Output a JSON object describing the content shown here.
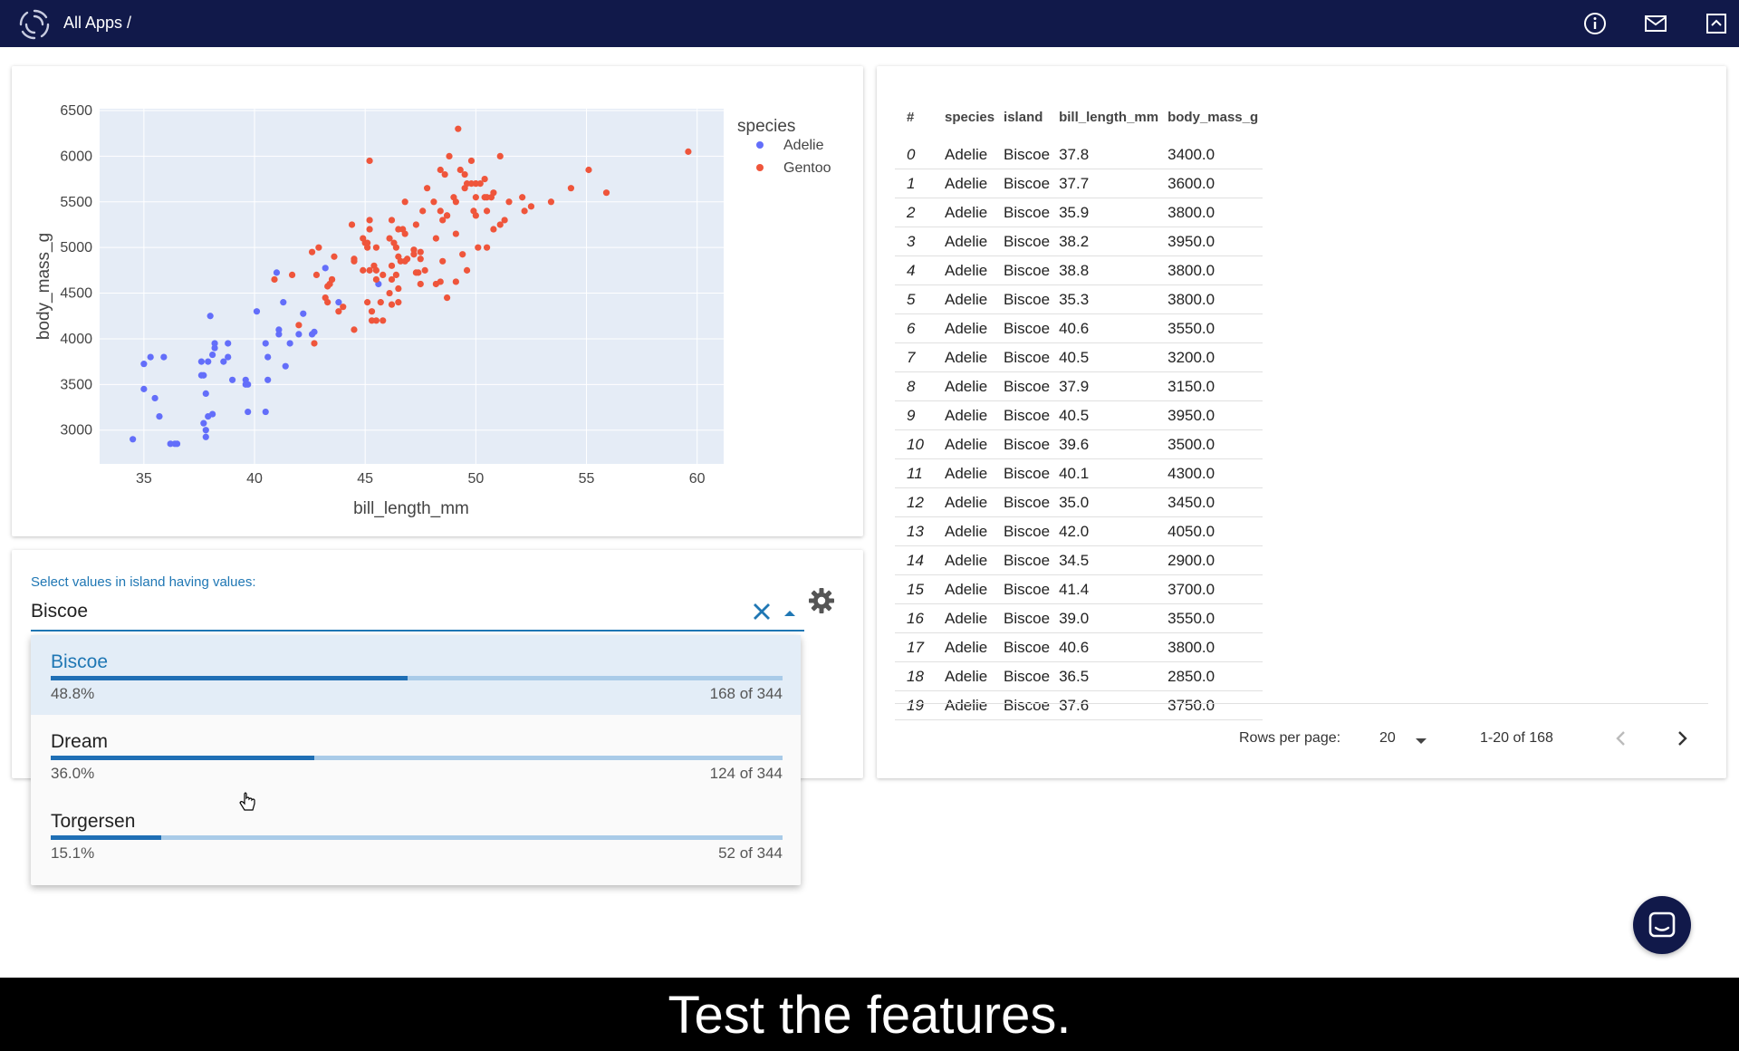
{
  "header": {
    "breadcrumb": "All Apps /",
    "icons": [
      "info-icon",
      "mail-icon",
      "collapse-icon"
    ]
  },
  "plot": {
    "legend_title": "species",
    "colors": {
      "Adelie": "#636efa",
      "Gentoo": "#ef553b"
    }
  },
  "chart_data": {
    "type": "scatter",
    "xlabel": "bill_length_mm",
    "ylabel": "body_mass_g",
    "xlim": [
      33,
      61.2
    ],
    "ylim": [
      2630,
      6520
    ],
    "x_ticks": [
      35,
      40,
      45,
      50,
      55,
      60
    ],
    "y_ticks": [
      3000,
      3500,
      4000,
      4500,
      5000,
      5500,
      6000,
      6500
    ],
    "grid": true,
    "legend_position": "top-right",
    "series": [
      {
        "name": "Adelie",
        "points": [
          [
            37.8,
            3400
          ],
          [
            37.7,
            3600
          ],
          [
            35.9,
            3800
          ],
          [
            38.2,
            3950
          ],
          [
            38.8,
            3800
          ],
          [
            35.3,
            3800
          ],
          [
            40.6,
            3550
          ],
          [
            40.5,
            3200
          ],
          [
            37.9,
            3150
          ],
          [
            40.5,
            3950
          ],
          [
            39.6,
            3500
          ],
          [
            40.1,
            4300
          ],
          [
            35.0,
            3450
          ],
          [
            42.0,
            4050
          ],
          [
            34.5,
            2900
          ],
          [
            41.4,
            3700
          ],
          [
            39.0,
            3550
          ],
          [
            40.6,
            3800
          ],
          [
            36.5,
            2850
          ],
          [
            37.6,
            3750
          ],
          [
            35.7,
            3150
          ],
          [
            41.3,
            4400
          ],
          [
            37.6,
            3600
          ],
          [
            41.1,
            4050
          ],
          [
            36.4,
            2850
          ],
          [
            41.6,
            3950
          ],
          [
            35.5,
            3350
          ],
          [
            41.1,
            4100
          ],
          [
            35.0,
            3725
          ],
          [
            41.0,
            4725
          ],
          [
            37.7,
            3075
          ],
          [
            37.8,
            2925
          ],
          [
            37.9,
            3750
          ],
          [
            39.7,
            3200
          ],
          [
            38.6,
            3750
          ],
          [
            38.2,
            3900
          ],
          [
            38.1,
            3825
          ],
          [
            43.2,
            4775
          ],
          [
            38.1,
            3175
          ],
          [
            45.6,
            4600
          ],
          [
            39.7,
            3500
          ],
          [
            42.2,
            4275
          ],
          [
            39.6,
            3550
          ],
          [
            42.7,
            4075
          ],
          [
            38.0,
            4250
          ],
          [
            38.8,
            3950
          ],
          [
            43.8,
            4400
          ],
          [
            42.6,
            4050
          ],
          [
            37.8,
            3000
          ],
          [
            36.2,
            2850
          ]
        ]
      },
      {
        "name": "Gentoo",
        "points": [
          [
            46.1,
            4500
          ],
          [
            50.0,
            5700
          ],
          [
            48.7,
            4450
          ],
          [
            50.0,
            5700
          ],
          [
            47.6,
            5400
          ],
          [
            46.5,
            4550
          ],
          [
            45.4,
            4800
          ],
          [
            46.7,
            5200
          ],
          [
            43.3,
            4400
          ],
          [
            46.8,
            5150
          ],
          [
            40.9,
            4650
          ],
          [
            49.0,
            5550
          ],
          [
            45.5,
            4650
          ],
          [
            48.4,
            5850
          ],
          [
            45.8,
            4200
          ],
          [
            49.3,
            5850
          ],
          [
            42.0,
            4150
          ],
          [
            49.2,
            6300
          ],
          [
            46.2,
            4800
          ],
          [
            48.7,
            5350
          ],
          [
            50.2,
            5700
          ],
          [
            45.1,
            5000
          ],
          [
            46.5,
            4400
          ],
          [
            46.3,
            5050
          ],
          [
            42.9,
            5000
          ],
          [
            46.1,
            5100
          ],
          [
            44.5,
            4100
          ],
          [
            47.8,
            5650
          ],
          [
            48.2,
            4600
          ],
          [
            50.0,
            5550
          ],
          [
            47.3,
            5250
          ],
          [
            42.8,
            4700
          ],
          [
            45.1,
            5050
          ],
          [
            59.6,
            6050
          ],
          [
            49.1,
            5150
          ],
          [
            48.4,
            5400
          ],
          [
            42.6,
            4950
          ],
          [
            44.4,
            5250
          ],
          [
            44.0,
            4350
          ],
          [
            48.7,
            5350
          ],
          [
            42.7,
            3950
          ],
          [
            49.6,
            5700
          ],
          [
            45.3,
            4300
          ],
          [
            49.6,
            4750
          ],
          [
            50.5,
            5550
          ],
          [
            43.6,
            4900
          ],
          [
            45.5,
            4200
          ],
          [
            50.5,
            5400
          ],
          [
            44.9,
            5100
          ],
          [
            45.2,
            5300
          ],
          [
            46.6,
            4850
          ],
          [
            48.5,
            5300
          ],
          [
            45.1,
            4400
          ],
          [
            50.1,
            5000
          ],
          [
            46.5,
            4900
          ],
          [
            45.0,
            5050
          ],
          [
            43.8,
            4300
          ],
          [
            45.5,
            5000
          ],
          [
            43.2,
            4450
          ],
          [
            50.4,
            5550
          ],
          [
            45.3,
            4200
          ],
          [
            46.2,
            5300
          ],
          [
            45.7,
            4400
          ],
          [
            54.3,
            5650
          ],
          [
            45.8,
            4700
          ],
          [
            49.8,
            5700
          ],
          [
            46.2,
            4650
          ],
          [
            49.5,
            5800
          ],
          [
            43.5,
            4650
          ],
          [
            50.7,
            5550
          ],
          [
            47.7,
            4750
          ],
          [
            46.4,
            5000
          ],
          [
            48.2,
            5100
          ],
          [
            46.5,
            5200
          ],
          [
            46.4,
            4700
          ],
          [
            48.6,
            5800
          ],
          [
            47.5,
            4600
          ],
          [
            51.1,
            6000
          ],
          [
            45.2,
            4750
          ],
          [
            45.2,
            5950
          ],
          [
            49.1,
            4625
          ],
          [
            52.5,
            5450
          ],
          [
            47.4,
            4725
          ],
          [
            50.0,
            5350
          ],
          [
            44.9,
            4750
          ],
          [
            50.8,
            5600
          ],
          [
            43.4,
            4600
          ],
          [
            51.3,
            5300
          ],
          [
            47.5,
            4875
          ],
          [
            52.1,
            5550
          ],
          [
            47.5,
            4950
          ],
          [
            52.2,
            5400
          ],
          [
            45.5,
            4750
          ],
          [
            49.5,
            5650
          ],
          [
            44.5,
            4850
          ],
          [
            50.8,
            5200
          ],
          [
            49.4,
            4925
          ],
          [
            46.9,
            4875
          ],
          [
            48.4,
            4625
          ],
          [
            51.1,
            5250
          ],
          [
            48.5,
            4850
          ],
          [
            55.9,
            5600
          ],
          [
            47.2,
            4975
          ],
          [
            49.1,
            5500
          ],
          [
            47.3,
            4725
          ],
          [
            46.8,
            5500
          ],
          [
            41.7,
            4700
          ],
          [
            53.4,
            5500
          ],
          [
            43.3,
            4575
          ],
          [
            48.1,
            5500
          ],
          [
            50.5,
            5000
          ],
          [
            49.8,
            5950
          ],
          [
            43.5,
            4650
          ],
          [
            51.5,
            5500
          ],
          [
            46.2,
            4375
          ],
          [
            55.1,
            5850
          ],
          [
            44.5,
            4875
          ],
          [
            48.8,
            6000
          ],
          [
            47.2,
            4925
          ],
          [
            46.8,
            4850
          ],
          [
            50.4,
            5750
          ],
          [
            45.2,
            5200
          ],
          [
            49.9,
            5400
          ]
        ]
      }
    ]
  },
  "filter": {
    "label": "Select values in island having values:",
    "value": "Biscoe",
    "options": [
      {
        "name": "Biscoe",
        "percent": "48.8%",
        "count": "168 of 344",
        "fraction": 0.488,
        "selected": true
      },
      {
        "name": "Dream",
        "percent": "36.0%",
        "count": "124 of 344",
        "fraction": 0.36,
        "selected": false
      },
      {
        "name": "Torgersen",
        "percent": "15.1%",
        "count": "52 of 344",
        "fraction": 0.151,
        "selected": false
      }
    ]
  },
  "table": {
    "columns": [
      "#",
      "species",
      "island",
      "bill_length_mm",
      "body_mass_g"
    ],
    "rows": [
      [
        "0",
        "Adelie",
        "Biscoe",
        "37.8",
        "3400.0"
      ],
      [
        "1",
        "Adelie",
        "Biscoe",
        "37.7",
        "3600.0"
      ],
      [
        "2",
        "Adelie",
        "Biscoe",
        "35.9",
        "3800.0"
      ],
      [
        "3",
        "Adelie",
        "Biscoe",
        "38.2",
        "3950.0"
      ],
      [
        "4",
        "Adelie",
        "Biscoe",
        "38.8",
        "3800.0"
      ],
      [
        "5",
        "Adelie",
        "Biscoe",
        "35.3",
        "3800.0"
      ],
      [
        "6",
        "Adelie",
        "Biscoe",
        "40.6",
        "3550.0"
      ],
      [
        "7",
        "Adelie",
        "Biscoe",
        "40.5",
        "3200.0"
      ],
      [
        "8",
        "Adelie",
        "Biscoe",
        "37.9",
        "3150.0"
      ],
      [
        "9",
        "Adelie",
        "Biscoe",
        "40.5",
        "3950.0"
      ],
      [
        "10",
        "Adelie",
        "Biscoe",
        "39.6",
        "3500.0"
      ],
      [
        "11",
        "Adelie",
        "Biscoe",
        "40.1",
        "4300.0"
      ],
      [
        "12",
        "Adelie",
        "Biscoe",
        "35.0",
        "3450.0"
      ],
      [
        "13",
        "Adelie",
        "Biscoe",
        "42.0",
        "4050.0"
      ],
      [
        "14",
        "Adelie",
        "Biscoe",
        "34.5",
        "2900.0"
      ],
      [
        "15",
        "Adelie",
        "Biscoe",
        "41.4",
        "3700.0"
      ],
      [
        "16",
        "Adelie",
        "Biscoe",
        "39.0",
        "3550.0"
      ],
      [
        "17",
        "Adelie",
        "Biscoe",
        "40.6",
        "3800.0"
      ],
      [
        "18",
        "Adelie",
        "Biscoe",
        "36.5",
        "2850.0"
      ],
      [
        "19",
        "Adelie",
        "Biscoe",
        "37.6",
        "3750.0"
      ]
    ],
    "footer": {
      "rows_per_page_label": "Rows per page:",
      "rows_per_page_value": "20",
      "range": "1-20 of 168"
    }
  },
  "caption": "Test the features."
}
